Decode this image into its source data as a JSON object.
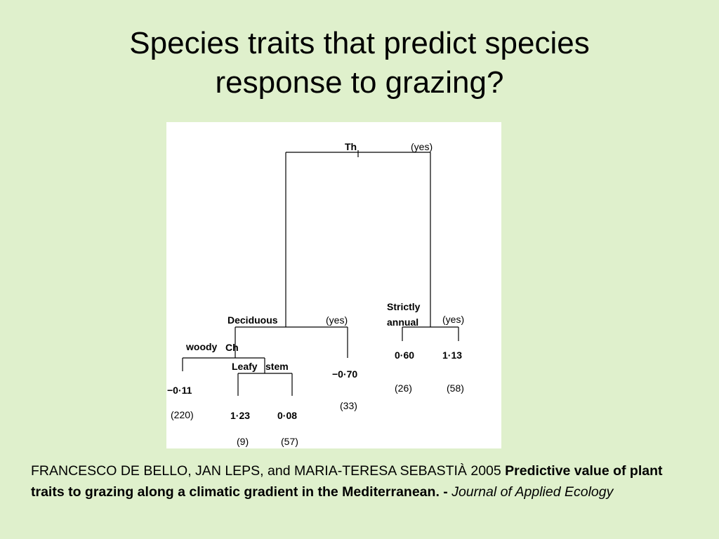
{
  "slide": {
    "title_line1": "Species traits that predict species",
    "title_line2": "response to grazing?"
  },
  "tree": {
    "root": {
      "label": "Th",
      "yes": "(yes)"
    },
    "left": {
      "label": "Deciduous",
      "yes": "(yes)",
      "left": {
        "label_left": "woody",
        "label_right": "Ch",
        "left": {
          "value": "−0·11",
          "n": "(220)"
        },
        "right": {
          "label_left": "Leafy",
          "label_right": "stem",
          "left": {
            "value": "1·23",
            "n": "(9)"
          },
          "right": {
            "value": "0·08",
            "n": "(57)"
          }
        }
      },
      "right": {
        "value": "−0·70",
        "n": "(33)"
      }
    },
    "right": {
      "label_line1": "Strictly",
      "label_line2": "annual",
      "yes": "(yes)",
      "left": {
        "value": "0·60",
        "n": "(26)"
      },
      "right": {
        "value": "1·13",
        "n": "(58)"
      }
    }
  },
  "citation": {
    "authors": "FRANCESCO DE BELLO, JAN LEPS, and MARIA-TERESA SEBASTIÀ 2005 ",
    "title": "Predictive value of plant traits to grazing along a climatic gradient in the Mediterranean.",
    "separator": " - ",
    "journal": "Journal of Applied Ecology"
  }
}
